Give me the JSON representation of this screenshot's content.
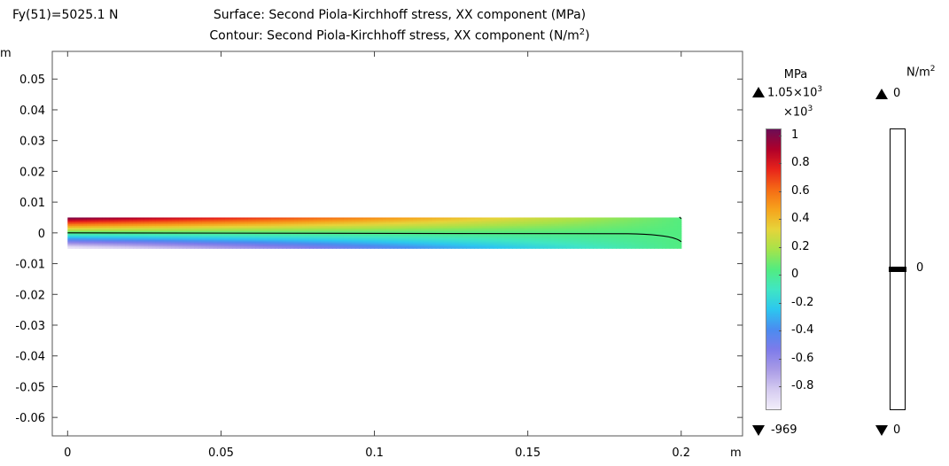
{
  "header": {
    "param_label": "Fy(51)=5025.1 N",
    "surface_title": "Surface: Second Piola-Kirchhoff stress, XX component (MPa)",
    "contour_title_main": "Contour: Second Piola-Kirchhoff stress, XX component (N/m",
    "contour_title_sup": "2",
    "contour_title_end": ")"
  },
  "colorbar1": {
    "unit": "MPa",
    "max_label": "1.05×10",
    "max_exp": "3",
    "multiplier": "×10",
    "multiplier_exp": "3",
    "min_label": "-969",
    "ticks": [
      "1",
      "0.8",
      "0.6",
      "0.4",
      "0.2",
      "0",
      "-0.2",
      "-0.4",
      "-0.6",
      "-0.8"
    ]
  },
  "colorbar2": {
    "unit": "N/m",
    "unit_exp": "2",
    "max_label": "0",
    "min_label": "0",
    "level_label": "0"
  },
  "chart_data": {
    "type": "heatmap",
    "title": "Surface: Second Piola-Kirchhoff stress, XX component (MPa)",
    "xlabel": "m",
    "ylabel": "m",
    "xlim": [
      -0.005,
      0.22
    ],
    "ylim": [
      -0.066,
      0.059
    ],
    "x_ticks": [
      0,
      0.05,
      0.1,
      0.15,
      0.2
    ],
    "x_tick_labels": [
      "0",
      "0.05",
      "0.1",
      "0.15",
      "0.2"
    ],
    "y_ticks": [
      0.05,
      0.04,
      0.03,
      0.02,
      0.01,
      0,
      -0.01,
      -0.02,
      -0.03,
      -0.04,
      -0.05,
      -0.06
    ],
    "y_tick_labels": [
      "0.05",
      "0.04",
      "0.03",
      "0.02",
      "0.01",
      "0",
      "-0.01",
      "-0.02",
      "-0.03",
      "-0.04",
      "-0.05",
      "-0.06"
    ],
    "beam": {
      "x_range": [
        0,
        0.2
      ],
      "y_range": [
        -0.005,
        0.005
      ]
    },
    "stress_range_mpa": [
      -969,
      1050
    ],
    "colormap": [
      "#6b0d55",
      "#b0002a",
      "#e8241b",
      "#f56a15",
      "#f6a31c",
      "#e6d43a",
      "#a6e34a",
      "#52ec80",
      "#40e6c3",
      "#2cc7ef",
      "#4a8cf0",
      "#7d7bea",
      "#a89ae6",
      "#d4caf0",
      "#f2eefa"
    ],
    "contour_level": 0
  }
}
